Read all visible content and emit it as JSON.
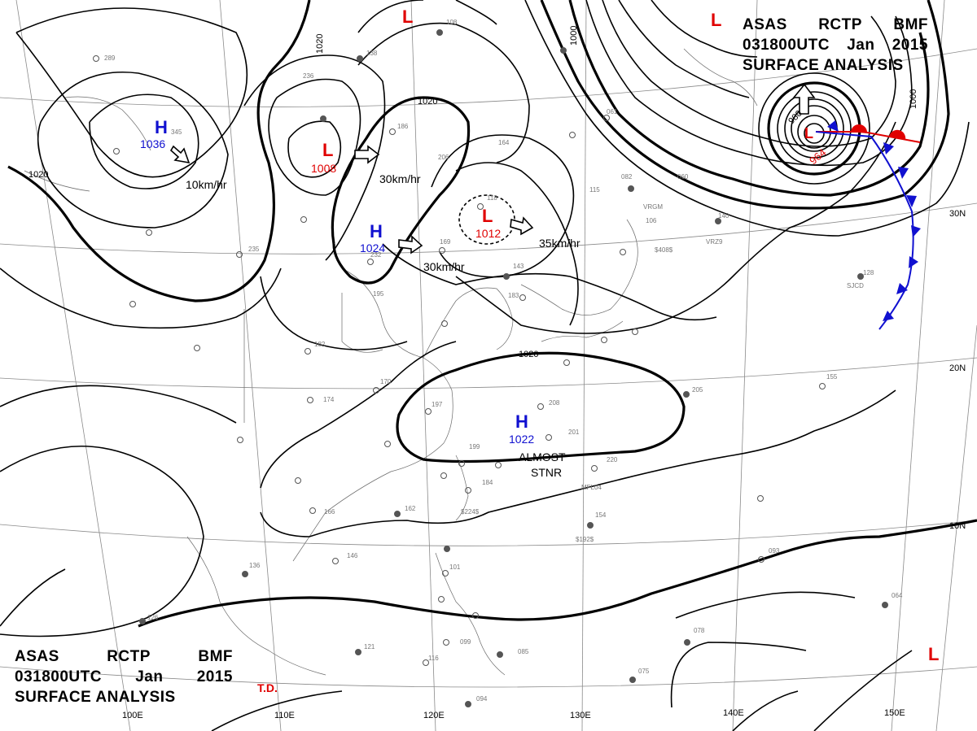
{
  "header": {
    "line1": [
      "ASAS",
      "RCTP",
      "BMF"
    ],
    "line2": [
      "031800UTC",
      "Jan",
      "2015"
    ],
    "line3": "SURFACE ANALYSIS"
  },
  "footer_title": {
    "line1": [
      "ASAS",
      "RCTP",
      "BMF"
    ],
    "line2": [
      "031800UTC",
      "Jan",
      "2015"
    ],
    "line3": "SURFACE ANALYSIS"
  },
  "analyst": "T.D.",
  "colors": {
    "high": "#1010d0",
    "low": "#e00000",
    "cold_front": "#1010d0",
    "warm_front": "#e00000",
    "isobar": "#000000"
  },
  "pressure_centers": [
    {
      "type": "H",
      "value": "1036",
      "color": "#1010d0"
    },
    {
      "type": "L",
      "value": "1008",
      "color": "#e00000"
    },
    {
      "type": "H",
      "value": "1024",
      "color": "#1010d0"
    },
    {
      "type": "L",
      "value": "1012",
      "color": "#e00000"
    },
    {
      "type": "H",
      "value": "1022",
      "color": "#1010d0"
    },
    {
      "type": "L",
      "value": "964",
      "color": "#e00000"
    },
    {
      "type": "L",
      "value": "",
      "color": "#e00000"
    },
    {
      "type": "L",
      "value": "",
      "color": "#e00000"
    },
    {
      "type": "L",
      "value": "",
      "color": "#e00000"
    }
  ],
  "motion_labels": [
    "10km/hr",
    "30km/hr",
    "30km/hr",
    "35km/hr"
  ],
  "stationary_note": [
    "ALMOST",
    "STNR"
  ],
  "isobar_labels": [
    "1020",
    "1020",
    "1020",
    "1020",
    "1000",
    "1000",
    "980",
    "1020"
  ],
  "lon_labels": [
    "100E",
    "110E",
    "120E",
    "130E",
    "140E",
    "150E"
  ],
  "lat_labels": [
    "30N",
    "20N",
    "10N"
  ],
  "station_labels": [
    "289",
    "236",
    "345",
    "186",
    "206",
    "164",
    "138",
    "108",
    "169",
    "118",
    "143",
    "183",
    "195",
    "182",
    "170",
    "174",
    "197",
    "199",
    "208",
    "201",
    "220",
    "184",
    "162",
    "166",
    "146",
    "136",
    "101",
    "126",
    "085",
    "094",
    "099",
    "116",
    "121",
    "155",
    "205",
    "154",
    "093",
    "064",
    "078",
    "075",
    "128",
    "140",
    "106",
    "082",
    "060",
    "115",
    "061",
    "232",
    "235"
  ],
  "ship_labels": [
    "VRGM",
    "VRZ9",
    "SJCD",
    "MFL04",
    "$408$",
    "$224$",
    "$192$"
  ]
}
